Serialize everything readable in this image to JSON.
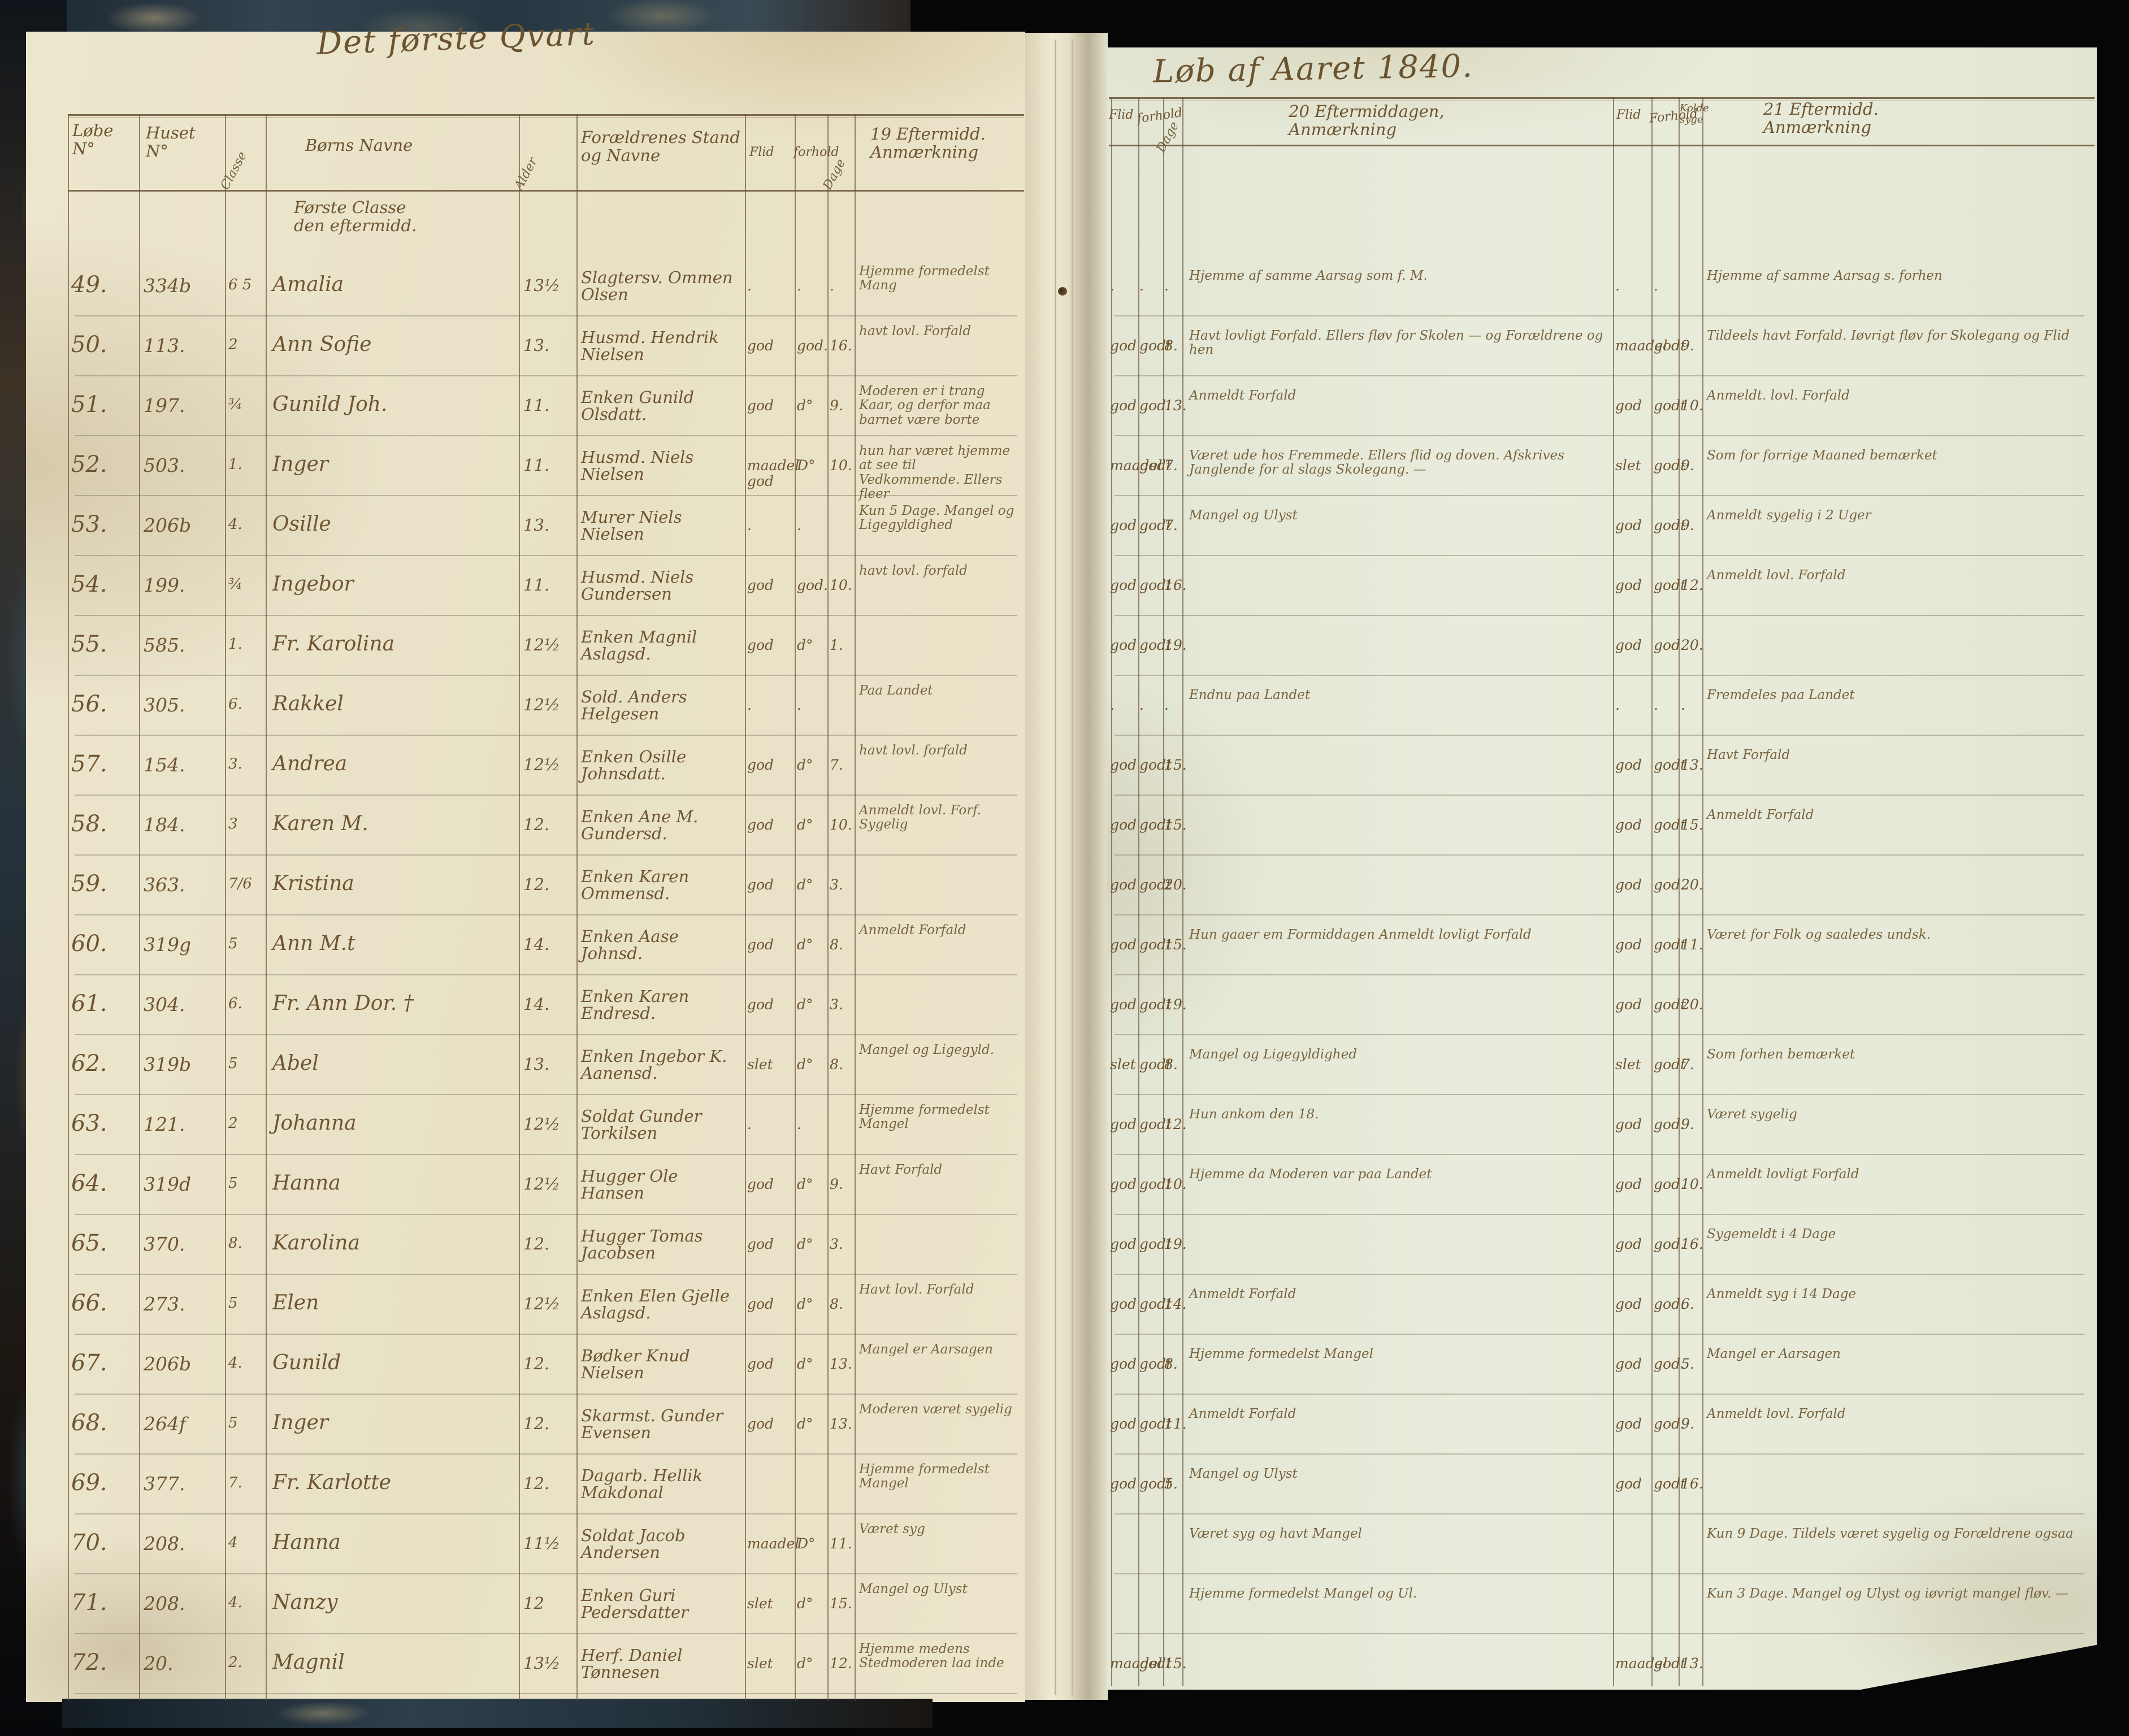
{
  "page": {
    "left_title": "Det første Qvart",
    "right_title": "Løb af Aaret 1840.",
    "subnote": "Første Classe\nden eftermidd.",
    "ink_color": "#6e5531",
    "paper_left_color": "#e9e3c9",
    "paper_right_color": "#e8ecdc",
    "cover_color": "#2c3a46",
    "headers": {
      "lobe": "Løbe\nN°",
      "huset": "Huset\nN°",
      "classe_rot": "Classe",
      "navn": "Børns Navne",
      "alder_rot": "Alder",
      "foraldre": "Forældrenes Stand og Navne",
      "flid19": "Flid",
      "forhold19": "forhold",
      "dage19_rot": "Dage",
      "anm19": "19 Eftermidd.\nAnmærkning",
      "flid20": "Flid",
      "forhold20": "forhold",
      "dage20_rot": "Dage",
      "anm20": "20 Eftermiddagen,\nAnmærkning",
      "flid21": "Flid",
      "forhold21": "Forhold",
      "kolde": "Kolde\nsyge",
      "anm21": "21 Eftermidd.\nAnmærkning"
    }
  },
  "rows": [
    {
      "no": "49.",
      "huset": "334b",
      "n1": "6 5",
      "navn": "Amalia",
      "alder": "13½",
      "foraldre": "Slagtersv. Ommen Olsen",
      "flid1": ".",
      "forhold1": ".",
      "dag1": ".",
      "anm1": "Hjemme formedelst Mang",
      "flid2": ".",
      "forhold2": ".",
      "dag2": ".",
      "anm2": "Hjemme af samme Aarsag som f. M.",
      "flid3": ".",
      "forhold3": ".",
      "dag3": "",
      "anm3": "Hjemme af samme Aarsag s. forhen"
    },
    {
      "no": "50.",
      "huset": "113.",
      "n1": "2",
      "navn": "Ann Sofie",
      "alder": "13.",
      "foraldre": "Husmd. Hendrik Nielsen",
      "flid1": "god",
      "forhold1": "god.",
      "dag1": "16.",
      "anm1": "havt lovl. Forfald",
      "flid2": "god",
      "forhold2": "godt",
      "dag2": "8.",
      "anm2": "Havt lovligt Forfald. Ellers fløv for Skolen — og Forældrene og hen",
      "flid3": "maadel",
      "forhold3": "godt",
      "dag3": "9.",
      "anm3": "Tildeels havt Forfald. Iøvrigt fløv for Skolegang og Flid"
    },
    {
      "no": "51.",
      "huset": "197.",
      "n1": "¾",
      "navn": "Gunild Joh.",
      "alder": "11.",
      "foraldre": "Enken Gunild Olsdatt.",
      "flid1": "god",
      "forhold1": "d°",
      "dag1": "9.",
      "anm1": "Moderen er i trang Kaar, og derfor maa barnet være borte",
      "flid2": "god",
      "forhold2": "god.",
      "dag2": "13.",
      "anm2": "Anmeldt Forfald",
      "flid3": "god",
      "forhold3": "godt",
      "dag3": "10.",
      "anm3": "Anmeldt. lovl. Forfald"
    },
    {
      "no": "52.",
      "huset": "503.",
      "n1": "1.",
      "navn": "Inger",
      "alder": "11.",
      "foraldre": "Husmd. Niels Nielsen",
      "flid1": "maadel god",
      "forhold1": "D°",
      "dag1": "10.",
      "anm1": "hun har været hjemme at see til Vedkommende. Ellers fleer",
      "flid2": "maadel",
      "forhold2": "godt",
      "dag2": "7.",
      "anm2": "Været ude hos Fremmede. Ellers flid og doven. Afskrives Janglende for al slags Skolegang. —",
      "flid3": "slet",
      "forhold3": "godt",
      "dag3": "9.",
      "anm3": "Som for forrige Maaned bemærket"
    },
    {
      "no": "53.",
      "huset": "206b",
      "n1": "4.",
      "navn": "Osille",
      "alder": "13.",
      "foraldre": "Murer Niels Nielsen",
      "flid1": ".",
      "forhold1": ".",
      "dag1": "",
      "anm1": "Kun 5 Dage. Mangel og Ligegyldighed",
      "flid2": "god",
      "forhold2": "godt",
      "dag2": "7.",
      "anm2": "Mangel og Ulyst",
      "flid3": "god",
      "forhold3": "godt",
      "dag3": "9.",
      "anm3": "Anmeldt sygelig i 2 Uger"
    },
    {
      "no": "54.",
      "huset": "199.",
      "n1": "¾",
      "navn": "Ingebor",
      "alder": "11.",
      "foraldre": "Husmd. Niels Gundersen",
      "flid1": "god",
      "forhold1": "god.",
      "dag1": "10.",
      "anm1": "havt lovl. forfald",
      "flid2": "god",
      "forhold2": "godt",
      "dag2": "16.",
      "anm2": "",
      "flid3": "god",
      "forhold3": "godt",
      "dag3": "12.",
      "anm3": "Anmeldt lovl. Forfald"
    },
    {
      "no": "55.",
      "huset": "585.",
      "n1": "1.",
      "navn": "Fr. Karolina",
      "alder": "12½",
      "foraldre": "Enken Magnil Aslagsd.",
      "flid1": "god",
      "forhold1": "d°",
      "dag1": "1.",
      "anm1": "",
      "flid2": "god",
      "forhold2": "godt",
      "dag2": "19.",
      "anm2": "",
      "flid3": "god",
      "forhold3": "god.",
      "dag3": "20.",
      "anm3": ""
    },
    {
      "no": "56.",
      "huset": "305.",
      "n1": "6.",
      "navn": "Rakkel",
      "alder": "12½",
      "foraldre": "Sold. Anders Helgesen",
      "flid1": ".",
      "forhold1": ".",
      "dag1": "",
      "anm1": "Paa Landet",
      "flid2": ".",
      "forhold2": ".",
      "dag2": ".",
      "anm2": "Endnu paa Landet",
      "flid3": ".",
      "forhold3": ".",
      "dag3": ".",
      "anm3": "Fremdeles paa Landet"
    },
    {
      "no": "57.",
      "huset": "154.",
      "n1": "3.",
      "navn": "Andrea",
      "alder": "12½",
      "foraldre": "Enken Osille Johnsdatt.",
      "flid1": "god",
      "forhold1": "d°",
      "dag1": "7.",
      "anm1": "havt lovl. forfald",
      "flid2": "god",
      "forhold2": "godt",
      "dag2": "15.",
      "anm2": "",
      "flid3": "god",
      "forhold3": "godt",
      "dag3": "13.",
      "anm3": "Havt Forfald"
    },
    {
      "no": "58.",
      "huset": "184.",
      "n1": "3",
      "navn": "Karen M.",
      "alder": "12.",
      "foraldre": "Enken Ane M. Gundersd.",
      "flid1": "god",
      "forhold1": "d°",
      "dag1": "10.",
      "anm1": "Anmeldt lovl. Forf. Sygelig",
      "flid2": "god",
      "forhold2": "godt",
      "dag2": "15.",
      "anm2": "",
      "flid3": "god",
      "forhold3": "godt",
      "dag3": "15.",
      "anm3": "Anmeldt Forfald"
    },
    {
      "no": "59.",
      "huset": "363.",
      "n1": "7/6",
      "navn": "Kristina",
      "alder": "12.",
      "foraldre": "Enken Karen Ommensd.",
      "flid1": "god",
      "forhold1": "d°",
      "dag1": "3.",
      "anm1": "",
      "flid2": "god",
      "forhold2": "godt",
      "dag2": "20.",
      "anm2": "",
      "flid3": "god",
      "forhold3": "god.",
      "dag3": "20.",
      "anm3": ""
    },
    {
      "no": "60.",
      "huset": "319g",
      "n1": "5",
      "navn": "Ann M.t",
      "alder": "14.",
      "foraldre": "Enken Aase Johnsd.",
      "flid1": "god",
      "forhold1": "d°",
      "dag1": "8.",
      "anm1": "Anmeldt Forfald",
      "flid2": "god",
      "forhold2": "godt",
      "dag2": "15.",
      "anm2": "Hun gaaer em Formiddagen Anmeldt lovligt Forfald",
      "flid3": "god",
      "forhold3": "godt",
      "dag3": "11.",
      "anm3": "Været for Folk og saaledes undsk."
    },
    {
      "no": "61.",
      "huset": "304.",
      "n1": "6.",
      "navn": "Fr. Ann Dor. †",
      "alder": "14.",
      "foraldre": "Enken Karen Endresd.",
      "flid1": "god",
      "forhold1": "d°",
      "dag1": "3.",
      "anm1": "",
      "flid2": "god",
      "forhold2": "godt",
      "dag2": "19.",
      "anm2": "",
      "flid3": "god",
      "forhold3": "godt",
      "dag3": "20.",
      "anm3": ""
    },
    {
      "no": "62.",
      "huset": "319b",
      "n1": "5",
      "navn": "Abel",
      "alder": "13.",
      "foraldre": "Enken Ingebor K. Aanensd.",
      "flid1": "slet",
      "forhold1": "d°",
      "dag1": "8.",
      "anm1": "Mangel og Ligegyld.",
      "flid2": "slet",
      "forhold2": "godt",
      "dag2": "8.",
      "anm2": "Mangel og Ligegyldighed",
      "flid3": "slet",
      "forhold3": "godt",
      "dag3": "7.",
      "anm3": "Som forhen bemærket"
    },
    {
      "no": "63.",
      "huset": "121.",
      "n1": "2",
      "navn": "Johanna",
      "alder": "12½",
      "foraldre": "Soldat Gunder Torkilsen",
      "flid1": ".",
      "forhold1": ".",
      "dag1": "",
      "anm1": "Hjemme formedelst Mangel",
      "flid2": "god",
      "forhold2": "godt",
      "dag2": "12.",
      "anm2": "Hun ankom den 18.",
      "flid3": "god",
      "forhold3": "god.",
      "dag3": "9.",
      "anm3": "Været sygelig"
    },
    {
      "no": "64.",
      "huset": "319d",
      "n1": "5",
      "navn": "Hanna",
      "alder": "12½",
      "foraldre": "Hugger Ole Hansen",
      "flid1": "god",
      "forhold1": "d°",
      "dag1": "9.",
      "anm1": "Havt Forfald",
      "flid2": "god",
      "forhold2": "godt",
      "dag2": "10.",
      "anm2": "Hjemme da Moderen var paa Landet",
      "flid3": "god",
      "forhold3": "god.",
      "dag3": "10.",
      "anm3": "Anmeldt lovligt Forfald"
    },
    {
      "no": "65.",
      "huset": "370.",
      "n1": "8.",
      "navn": "Karolina",
      "alder": "12.",
      "foraldre": "Hugger Tomas Jacobsen",
      "flid1": "god",
      "forhold1": "d°",
      "dag1": "3.",
      "anm1": "",
      "flid2": "god",
      "forhold2": "godt",
      "dag2": "19.",
      "anm2": "",
      "flid3": "god",
      "forhold3": "god.",
      "dag3": "16.",
      "anm3": "Sygemeldt i 4 Dage"
    },
    {
      "no": "66.",
      "huset": "273.",
      "n1": "5",
      "navn": "Elen",
      "alder": "12½",
      "foraldre": "Enken Elen Gjelle Aslagsd.",
      "flid1": "god",
      "forhold1": "d°",
      "dag1": "8.",
      "anm1": "Havt lovl. Forfald",
      "flid2": "god",
      "forhold2": "godt",
      "dag2": "14.",
      "anm2": "Anmeldt Forfald",
      "flid3": "god",
      "forhold3": "god.",
      "dag3": "6.",
      "anm3": "Anmeldt syg i 14 Dage"
    },
    {
      "no": "67.",
      "huset": "206b",
      "n1": "4.",
      "navn": "Gunild",
      "alder": "12.",
      "foraldre": "Bødker Knud Nielsen",
      "flid1": "god",
      "forhold1": "d°",
      "dag1": "13.",
      "anm1": "Mangel er Aarsagen",
      "flid2": "god",
      "forhold2": "godt",
      "dag2": "8.",
      "anm2": "Hjemme formedelst Mangel",
      "flid3": "god",
      "forhold3": "god.",
      "dag3": "5.",
      "anm3": "Mangel er Aarsagen"
    },
    {
      "no": "68.",
      "huset": "264f",
      "n1": "5",
      "navn": "Inger",
      "alder": "12.",
      "foraldre": "Skarmst. Gunder Evensen",
      "flid1": "god",
      "forhold1": "d°",
      "dag1": "13.",
      "anm1": "Moderen været sygelig",
      "flid2": "god",
      "forhold2": "godt",
      "dag2": "11.",
      "anm2": "Anmeldt Forfald",
      "flid3": "god",
      "forhold3": "god.",
      "dag3": "9.",
      "anm3": "Anmeldt lovl. Forfald"
    },
    {
      "no": "69.",
      "huset": "377.",
      "n1": "7.",
      "navn": "Fr. Karlotte",
      "alder": "12.",
      "foraldre": "Dagarb. Hellik Makdonal",
      "flid1": "",
      "forhold1": "",
      "dag1": "",
      "anm1": "Hjemme formedelst Mangel",
      "flid2": "god",
      "forhold2": "godt",
      "dag2": "5.",
      "anm2": "Mangel og Ulyst",
      "flid3": "god",
      "forhold3": "godt",
      "dag3": "16.",
      "anm3": ""
    },
    {
      "no": "70.",
      "huset": "208.",
      "n1": "4",
      "navn": "Hanna",
      "alder": "11½",
      "foraldre": "Soldat Jacob Andersen",
      "flid1": "maadel",
      "forhold1": "D°",
      "dag1": "11.",
      "anm1": "Været syg",
      "flid2": "",
      "forhold2": "",
      "dag2": "",
      "anm2": "Været syg og havt Mangel",
      "flid3": "",
      "forhold3": "",
      "dag3": "",
      "anm3": "Kun 9 Dage. Tildels været sygelig og Forældrene ogsaa"
    },
    {
      "no": "71.",
      "huset": "208.",
      "n1": "4.",
      "navn": "Nanzy",
      "alder": "12",
      "foraldre": "Enken Guri Pedersdatter",
      "flid1": "slet",
      "forhold1": "d°",
      "dag1": "15.",
      "anm1": "Mangel og Ulyst",
      "flid2": "",
      "forhold2": "",
      "dag2": "",
      "anm2": "Hjemme formedelst Mangel og Ul.",
      "flid3": "",
      "forhold3": "",
      "dag3": "",
      "anm3": "Kun 3 Dage. Mangel og Ulyst og iøvrigt mangel fløv. —"
    },
    {
      "no": "72.",
      "huset": "20.",
      "n1": "2.",
      "navn": "Magnil",
      "alder": "13½",
      "foraldre": "Herf. Daniel Tønnesen",
      "flid1": "slet",
      "forhold1": "d°",
      "dag1": "12.",
      "anm1": "Hjemme medens Stedmoderen laa inde",
      "flid2": "maadel",
      "forhold2": "godt",
      "dag2": "15.",
      "anm2": "",
      "flid3": "maadel",
      "forhold3": "godt",
      "dag3": "13.",
      "anm3": ""
    }
  ]
}
